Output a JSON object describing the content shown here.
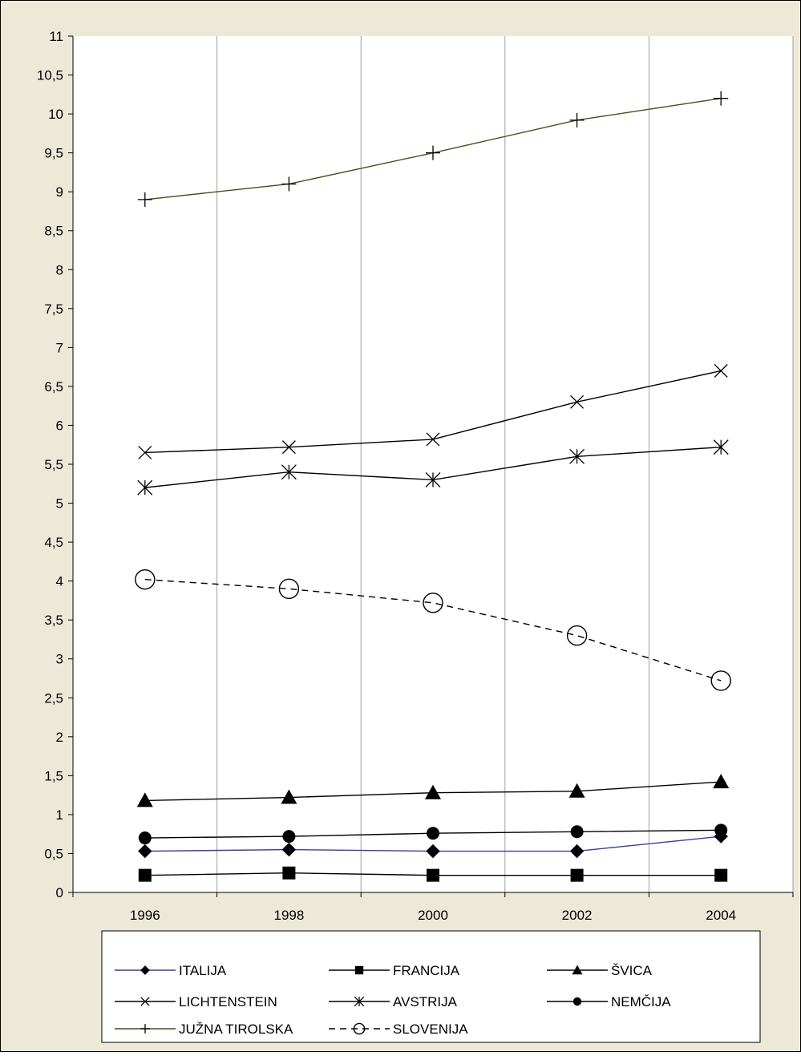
{
  "chart_data": {
    "type": "line",
    "title": "",
    "xlabel": "",
    "ylabel": "",
    "x": [
      "1996",
      "1998",
      "2000",
      "2002",
      "2004"
    ],
    "ylim": [
      0,
      11
    ],
    "ytick_step": 0.5,
    "y_tick_labels": [
      "0",
      "0,5",
      "1",
      "1,5",
      "2",
      "2,5",
      "3",
      "3,5",
      "4",
      "4,5",
      "5",
      "5,5",
      "6",
      "6,5",
      "7",
      "7,5",
      "8",
      "8,5",
      "9",
      "9,5",
      "10",
      "10,5",
      "11"
    ],
    "grid": "vertical",
    "legend_position": "bottom",
    "series": [
      {
        "name": "ITALIJA",
        "values": [
          0.53,
          0.55,
          0.53,
          0.53,
          0.72
        ],
        "color": "#3a3aa0",
        "marker": "diamond",
        "dash": "solid"
      },
      {
        "name": "FRANCIJA",
        "values": [
          0.22,
          0.25,
          0.22,
          0.22,
          0.22
        ],
        "color": "#000000",
        "marker": "square",
        "dash": "solid"
      },
      {
        "name": "ŠVICA",
        "values": [
          1.18,
          1.22,
          1.28,
          1.3,
          1.42
        ],
        "color": "#000000",
        "marker": "triangle",
        "dash": "solid"
      },
      {
        "name": "LICHTENSTEIN",
        "values": [
          5.65,
          5.72,
          5.82,
          6.3,
          6.7
        ],
        "color": "#000000",
        "marker": "x",
        "dash": "solid"
      },
      {
        "name": "AVSTRIJA",
        "values": [
          5.2,
          5.4,
          5.3,
          5.6,
          5.72
        ],
        "color": "#000000",
        "marker": "star",
        "dash": "solid"
      },
      {
        "name": "NEMČIJA",
        "values": [
          0.7,
          0.72,
          0.76,
          0.78,
          0.8
        ],
        "color": "#000000",
        "marker": "circle",
        "dash": "solid"
      },
      {
        "name": "JUŽNA TIROLSKA",
        "values": [
          8.9,
          9.1,
          9.5,
          9.92,
          10.2
        ],
        "color": "#4a4a20",
        "marker": "plus",
        "dash": "solid"
      },
      {
        "name": "SLOVENIJA",
        "values": [
          4.02,
          3.9,
          3.72,
          3.3,
          2.72
        ],
        "color": "#000000",
        "marker": "open-circle",
        "dash": "dashed"
      }
    ]
  },
  "colors": {
    "frame_background": "#ece9d8",
    "plot_background": "#ffffff",
    "grid": "#a0a0a0",
    "axis": "#000000",
    "legend_background": "#ffffff"
  }
}
